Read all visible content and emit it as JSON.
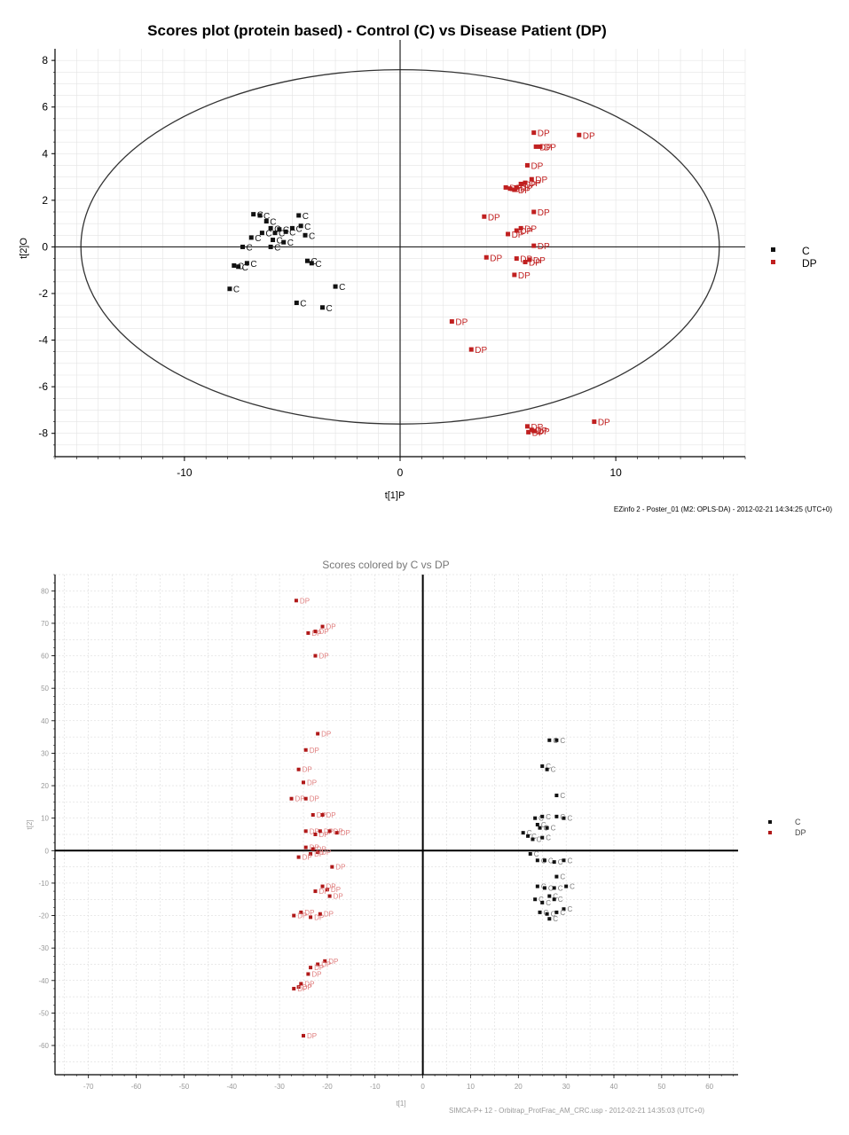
{
  "chart_data": [
    {
      "type": "scatter",
      "title": "Scores plot (protein based) - Control (C) vs Disease Patient (DP)",
      "xlabel": "t[1]P",
      "ylabel": "t[2]O",
      "xticks": [
        "-10",
        "0",
        "10"
      ],
      "yticks": [
        "8",
        "6",
        "4",
        "2",
        "0",
        "-2",
        "-4",
        "-6",
        "-8"
      ],
      "xlim": [
        -16,
        16
      ],
      "ylim": [
        -9,
        8.5
      ],
      "ellipse": {
        "rx": 14.8,
        "ry": 7.6
      },
      "grid": true,
      "legend_position": "right",
      "footer": "EZinfo 2 - Poster_01 (M2: OPLS-DA) - 2012-02-21 14:34:25 (UTC+0)",
      "series": [
        {
          "name": "C",
          "color": "#111111",
          "label": "C",
          "points": [
            [
              -6.8,
              1.4
            ],
            [
              -6.5,
              1.35
            ],
            [
              -6.2,
              1.1
            ],
            [
              -4.7,
              1.35
            ],
            [
              -6.9,
              0.4
            ],
            [
              -6.4,
              0.6
            ],
            [
              -6.0,
              0.8
            ],
            [
              -5.8,
              0.6
            ],
            [
              -5.6,
              0.75
            ],
            [
              -5.3,
              0.65
            ],
            [
              -5.0,
              0.8
            ],
            [
              -4.6,
              0.9
            ],
            [
              -4.4,
              0.5
            ],
            [
              -5.9,
              0.3
            ],
            [
              -5.4,
              0.2
            ],
            [
              -7.3,
              0.0
            ],
            [
              -6.0,
              0.0
            ],
            [
              -7.7,
              -0.8
            ],
            [
              -7.5,
              -0.85
            ],
            [
              -7.1,
              -0.7
            ],
            [
              -4.3,
              -0.6
            ],
            [
              -4.1,
              -0.7
            ],
            [
              -7.9,
              -1.8
            ],
            [
              -3.0,
              -1.7
            ],
            [
              -4.8,
              -2.4
            ],
            [
              -3.6,
              -2.6
            ]
          ]
        },
        {
          "name": "DP",
          "color": "#c02020",
          "label": "DP",
          "points": [
            [
              6.2,
              4.9
            ],
            [
              8.3,
              4.8
            ],
            [
              6.3,
              4.3
            ],
            [
              6.5,
              4.3
            ],
            [
              5.9,
              3.5
            ],
            [
              6.1,
              2.9
            ],
            [
              5.8,
              2.75
            ],
            [
              5.6,
              2.7
            ],
            [
              5.4,
              2.55
            ],
            [
              4.9,
              2.55
            ],
            [
              5.1,
              2.5
            ],
            [
              5.3,
              2.45
            ],
            [
              6.2,
              1.5
            ],
            [
              3.9,
              1.3
            ],
            [
              5.6,
              0.8
            ],
            [
              5.4,
              0.7
            ],
            [
              5.0,
              0.55
            ],
            [
              6.2,
              0.05
            ],
            [
              4.0,
              -0.45
            ],
            [
              5.4,
              -0.5
            ],
            [
              6.0,
              -0.55
            ],
            [
              5.8,
              -0.65
            ],
            [
              5.3,
              -1.2
            ],
            [
              2.4,
              -3.2
            ],
            [
              3.3,
              -4.4
            ],
            [
              5.9,
              -7.7
            ],
            [
              6.1,
              -7.85
            ],
            [
              6.2,
              -7.9
            ],
            [
              5.95,
              -7.95
            ],
            [
              9.0,
              -7.5
            ]
          ]
        }
      ]
    },
    {
      "type": "scatter",
      "title": "Scores colored by C vs DP",
      "xlabel": "t[1]",
      "ylabel": "t[2]",
      "xticks": [
        "-70",
        "-60",
        "-50",
        "-40",
        "-30",
        "-20",
        "-10",
        "0",
        "10",
        "20",
        "30",
        "40",
        "50",
        "60"
      ],
      "yticks": [
        "80",
        "70",
        "60",
        "50",
        "40",
        "30",
        "20",
        "10",
        "0",
        "-10",
        "-20",
        "-30",
        "-40",
        "-50",
        "-60"
      ],
      "xlim": [
        -77,
        66
      ],
      "ylim": [
        -69,
        85
      ],
      "grid": true,
      "legend_position": "right",
      "footer": "SIMCA-P+ 12 - Orbitrap_ProtFrac_AM_CRC.usp - 2012-02-21 14:35:03 (UTC+0)",
      "series": [
        {
          "name": "C",
          "color": "#111111",
          "label": "C",
          "points": [
            [
              26.5,
              34
            ],
            [
              28,
              34
            ],
            [
              25,
              26
            ],
            [
              26,
              25
            ],
            [
              28,
              17
            ],
            [
              23.5,
              10
            ],
            [
              25,
              10.5
            ],
            [
              28,
              10.5
            ],
            [
              29.5,
              10
            ],
            [
              24,
              8
            ],
            [
              24.5,
              7
            ],
            [
              26,
              7
            ],
            [
              21,
              5.5
            ],
            [
              22,
              4.5
            ],
            [
              23,
              3.5
            ],
            [
              25,
              4
            ],
            [
              22.5,
              -1
            ],
            [
              24,
              -3
            ],
            [
              25.5,
              -3
            ],
            [
              27.5,
              -3.5
            ],
            [
              29.5,
              -3
            ],
            [
              28,
              -8
            ],
            [
              30,
              -11
            ],
            [
              24,
              -11
            ],
            [
              25.5,
              -11.5
            ],
            [
              27.5,
              -11.5
            ],
            [
              26.5,
              -14
            ],
            [
              23.5,
              -15
            ],
            [
              25,
              -16
            ],
            [
              27.5,
              -15
            ],
            [
              29.5,
              -18
            ],
            [
              24.5,
              -19
            ],
            [
              26,
              -19.5
            ],
            [
              28,
              -19
            ],
            [
              26.5,
              -21
            ]
          ]
        },
        {
          "name": "DP",
          "color": "#b01818",
          "label": "DP",
          "points": [
            [
              -26.5,
              77
            ],
            [
              -24,
              67
            ],
            [
              -21,
              69
            ],
            [
              -22.5,
              67.5
            ],
            [
              -22.5,
              60
            ],
            [
              -22,
              36
            ],
            [
              -24.5,
              31
            ],
            [
              -26,
              25
            ],
            [
              -25,
              21
            ],
            [
              -27.5,
              16
            ],
            [
              -24.5,
              16
            ],
            [
              -23,
              11
            ],
            [
              -21,
              11
            ],
            [
              -24.5,
              6
            ],
            [
              -22.5,
              5
            ],
            [
              -21.5,
              6
            ],
            [
              -19.5,
              6
            ],
            [
              -18,
              5.5
            ],
            [
              -24.5,
              1
            ],
            [
              -23,
              0.5
            ],
            [
              -22,
              -0.5
            ],
            [
              -23.5,
              -1
            ],
            [
              -26,
              -2
            ],
            [
              -19,
              -5
            ],
            [
              -21,
              -11
            ],
            [
              -20,
              -12
            ],
            [
              -22.5,
              -12.5
            ],
            [
              -19.5,
              -14
            ],
            [
              -25.5,
              -19
            ],
            [
              -27,
              -20
            ],
            [
              -23.5,
              -20.5
            ],
            [
              -21.5,
              -19.5
            ],
            [
              -20.5,
              -34
            ],
            [
              -22,
              -35
            ],
            [
              -23.5,
              -36
            ],
            [
              -24,
              -38
            ],
            [
              -25.5,
              -41
            ],
            [
              -26,
              -42
            ],
            [
              -27,
              -42.5
            ],
            [
              -25,
              -57
            ]
          ]
        }
      ]
    }
  ]
}
